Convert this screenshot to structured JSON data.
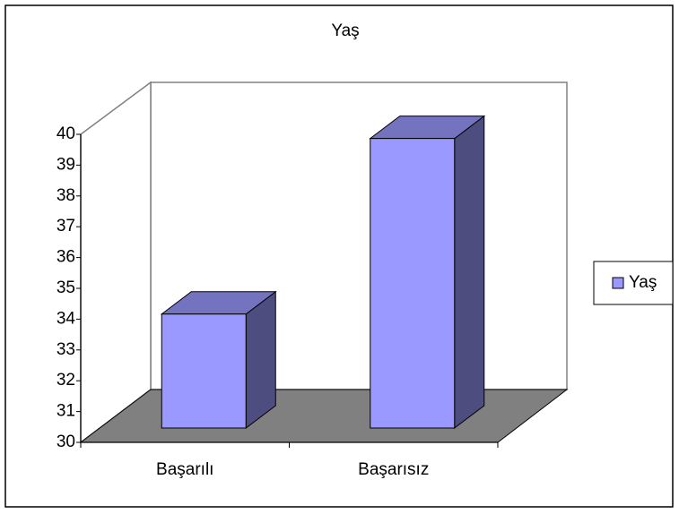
{
  "chart_data": {
    "type": "bar",
    "title": "Yaş",
    "categories": [
      "Başarılı",
      "Başarısız"
    ],
    "series": [
      {
        "name": "Yaş",
        "color": "#9999ff",
        "values": [
          33.7,
          39.4
        ]
      }
    ],
    "ylim": [
      30,
      40
    ],
    "yticks": [
      30,
      31,
      32,
      33,
      34,
      35,
      36,
      37,
      38,
      39,
      40
    ],
    "legend": "right",
    "grid": false
  }
}
